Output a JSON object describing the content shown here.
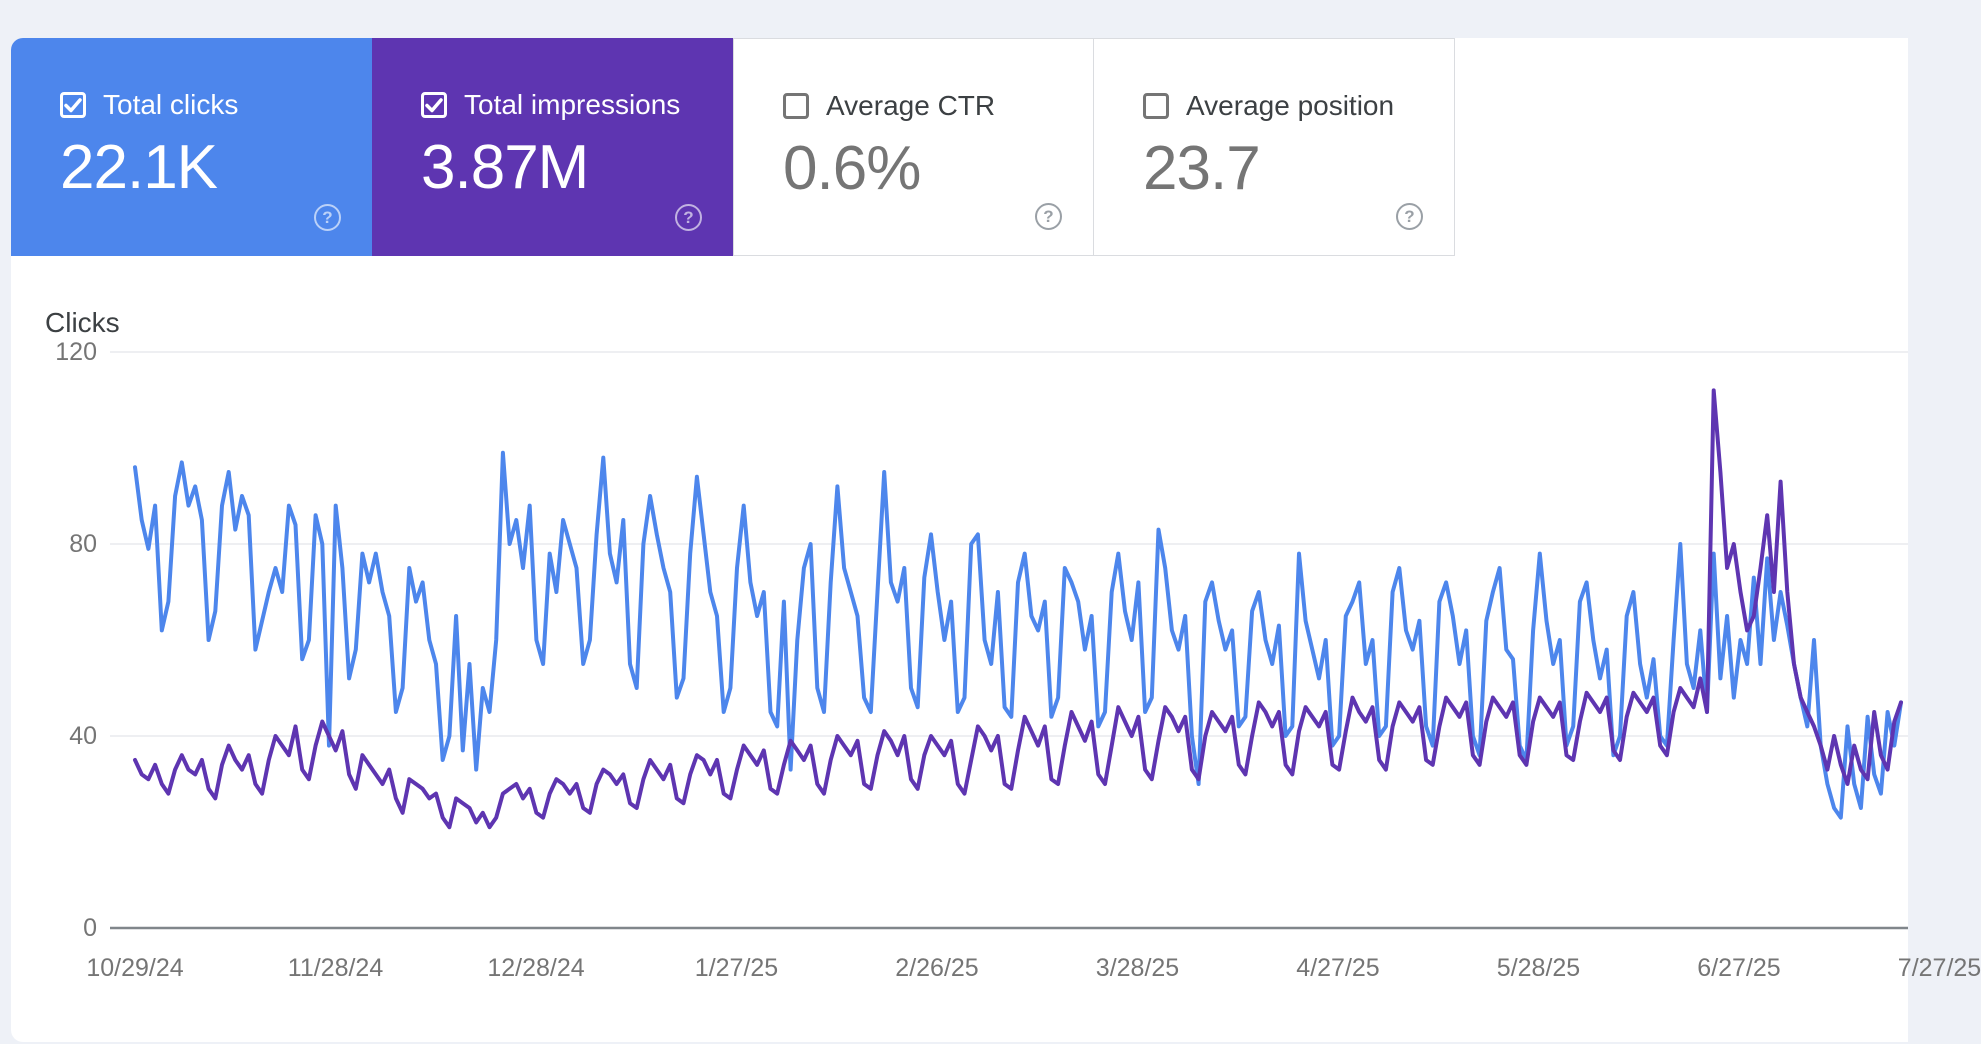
{
  "cards": [
    {
      "label": "Total clicks",
      "value": "22.1K",
      "selected": true,
      "color": "#4d86ec"
    },
    {
      "label": "Total impressions",
      "value": "3.87M",
      "selected": true,
      "color": "#5e35b1"
    },
    {
      "label": "Average CTR",
      "value": "0.6%",
      "selected": false,
      "color": "#ffffff"
    },
    {
      "label": "Average position",
      "value": "23.7",
      "selected": false,
      "color": "#ffffff"
    }
  ],
  "icons": {
    "help": "?",
    "checkbox_checked": "✓"
  },
  "colors": {
    "page_background": "#eef1f7",
    "panel": "#ffffff",
    "clicks_blue": "#4d86ec",
    "impressions_purple": "#5e35b1",
    "gridline": "#e8eaed",
    "axis_line": "#80868b",
    "tick_text": "#757575",
    "label_text": "#3c4043",
    "card_border": "#dadce0"
  },
  "chart_data": {
    "type": "line",
    "title": "",
    "xlabel": "",
    "ylabel": "Clicks",
    "ylim": [
      0,
      120
    ],
    "y_ticks": [
      0,
      40,
      80,
      120
    ],
    "grid": "horizontal",
    "legend_position": "none",
    "x_start_date": "10/29/24",
    "x_interval": "day",
    "x_tick_labels": [
      "10/29/24",
      "11/28/24",
      "12/28/24",
      "1/27/25",
      "2/26/25",
      "3/28/25",
      "4/27/25",
      "5/28/25",
      "6/27/25",
      "7/27/25"
    ],
    "series": [
      {
        "name": "Total clicks",
        "data_name": "clicks-line",
        "color": "#4d86ec",
        "values": [
          96,
          85,
          79,
          88,
          62,
          68,
          90,
          97,
          88,
          92,
          85,
          60,
          66,
          88,
          95,
          83,
          90,
          86,
          58,
          64,
          70,
          75,
          70,
          88,
          84,
          56,
          60,
          86,
          80,
          38,
          88,
          75,
          52,
          58,
          78,
          72,
          78,
          70,
          65,
          45,
          50,
          75,
          68,
          72,
          60,
          55,
          35,
          40,
          65,
          37,
          55,
          33,
          50,
          45,
          60,
          99,
          80,
          85,
          75,
          88,
          60,
          55,
          78,
          70,
          85,
          80,
          75,
          55,
          60,
          82,
          98,
          78,
          72,
          85,
          55,
          50,
          80,
          90,
          82,
          75,
          70,
          48,
          52,
          78,
          94,
          82,
          70,
          65,
          45,
          50,
          75,
          88,
          72,
          65,
          70,
          45,
          42,
          68,
          33,
          60,
          75,
          80,
          50,
          45,
          72,
          92,
          75,
          70,
          65,
          48,
          45,
          70,
          95,
          72,
          68,
          75,
          50,
          46,
          73,
          82,
          70,
          60,
          68,
          45,
          48,
          80,
          82,
          60,
          55,
          70,
          46,
          44,
          72,
          78,
          65,
          62,
          68,
          44,
          48,
          75,
          72,
          68,
          58,
          65,
          42,
          45,
          70,
          78,
          66,
          60,
          72,
          45,
          48,
          83,
          75,
          62,
          58,
          65,
          40,
          30,
          68,
          72,
          64,
          58,
          62,
          42,
          44,
          66,
          70,
          60,
          55,
          63,
          40,
          42,
          78,
          64,
          58,
          52,
          60,
          38,
          40,
          65,
          68,
          72,
          55,
          60,
          40,
          42,
          70,
          75,
          62,
          58,
          64,
          42,
          38,
          68,
          72,
          65,
          55,
          62,
          40,
          36,
          64,
          70,
          75,
          58,
          56,
          38,
          35,
          62,
          78,
          64,
          55,
          60,
          38,
          42,
          68,
          72,
          60,
          52,
          58,
          36,
          40,
          65,
          70,
          55,
          48,
          56,
          40,
          38,
          60,
          80,
          55,
          50,
          62,
          45,
          78,
          52,
          65,
          48,
          60,
          55,
          73,
          55,
          77,
          60,
          70,
          63,
          55,
          48,
          42,
          60,
          38,
          30,
          25,
          23,
          42,
          30,
          25,
          44,
          32,
          28,
          45,
          38,
          47
        ]
      },
      {
        "name": "Total impressions",
        "data_name": "impressions-line",
        "color": "#5e35b1",
        "values": [
          35,
          32,
          31,
          34,
          30,
          28,
          33,
          36,
          33,
          32,
          35,
          29,
          27,
          34,
          38,
          35,
          33,
          36,
          30,
          28,
          35,
          40,
          38,
          36,
          42,
          33,
          31,
          38,
          43,
          40,
          37,
          41,
          32,
          29,
          36,
          34,
          32,
          30,
          33,
          27,
          24,
          31,
          30,
          29,
          27,
          28,
          23,
          21,
          27,
          26,
          25,
          22,
          24,
          21,
          23,
          28,
          29,
          30,
          27,
          29,
          24,
          23,
          28,
          31,
          30,
          28,
          30,
          25,
          24,
          30,
          33,
          32,
          30,
          32,
          26,
          25,
          31,
          35,
          33,
          31,
          34,
          27,
          26,
          32,
          36,
          35,
          32,
          35,
          28,
          27,
          33,
          38,
          36,
          34,
          37,
          29,
          28,
          34,
          39,
          37,
          35,
          38,
          30,
          28,
          35,
          40,
          38,
          36,
          39,
          30,
          29,
          36,
          41,
          39,
          36,
          40,
          31,
          29,
          36,
          40,
          38,
          36,
          39,
          30,
          28,
          35,
          42,
          40,
          37,
          40,
          30,
          29,
          37,
          44,
          41,
          38,
          42,
          31,
          30,
          38,
          45,
          42,
          39,
          43,
          32,
          30,
          38,
          46,
          43,
          40,
          44,
          33,
          31,
          39,
          46,
          44,
          41,
          44,
          33,
          31,
          40,
          45,
          43,
          41,
          44,
          34,
          32,
          40,
          47,
          45,
          42,
          45,
          34,
          32,
          41,
          46,
          44,
          42,
          45,
          34,
          33,
          41,
          48,
          45,
          43,
          46,
          35,
          33,
          42,
          47,
          45,
          43,
          46,
          35,
          34,
          42,
          48,
          46,
          44,
          47,
          36,
          34,
          43,
          48,
          46,
          44,
          47,
          36,
          34,
          43,
          48,
          46,
          44,
          47,
          36,
          35,
          43,
          49,
          47,
          45,
          48,
          37,
          35,
          44,
          49,
          47,
          45,
          48,
          38,
          36,
          45,
          50,
          48,
          46,
          52,
          45,
          112,
          95,
          75,
          80,
          70,
          62,
          65,
          75,
          86,
          70,
          93,
          70,
          55,
          48,
          45,
          42,
          38,
          33,
          40,
          34,
          30,
          38,
          33,
          31,
          45,
          36,
          33,
          43,
          47
        ]
      }
    ]
  }
}
